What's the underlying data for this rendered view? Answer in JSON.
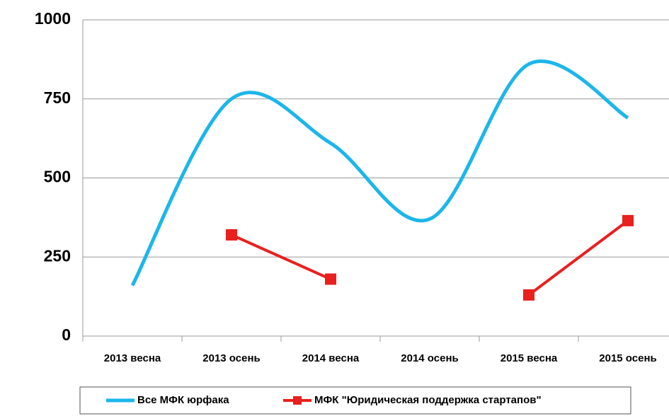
{
  "chart_data": {
    "type": "line",
    "categories": [
      "2013 весна",
      "2013 осень",
      "2014 весна",
      "2014 осень",
      "2015 весна",
      "2015 осень"
    ],
    "series": [
      {
        "name": "Все МФК юрфака",
        "color": "#1cb6ea",
        "smooth": true,
        "values": [
          160,
          750,
          610,
          370,
          860,
          690
        ]
      },
      {
        "name": "МФК \"Юридическая поддержка стартапов\"",
        "color": "#e8201e",
        "marker": "square",
        "values": [
          null,
          320,
          180,
          null,
          130,
          365
        ]
      }
    ],
    "ylim": [
      0,
      1000
    ],
    "yticks": [
      0,
      250,
      500,
      750,
      1000
    ],
    "grid": true,
    "legend": "bottom"
  }
}
